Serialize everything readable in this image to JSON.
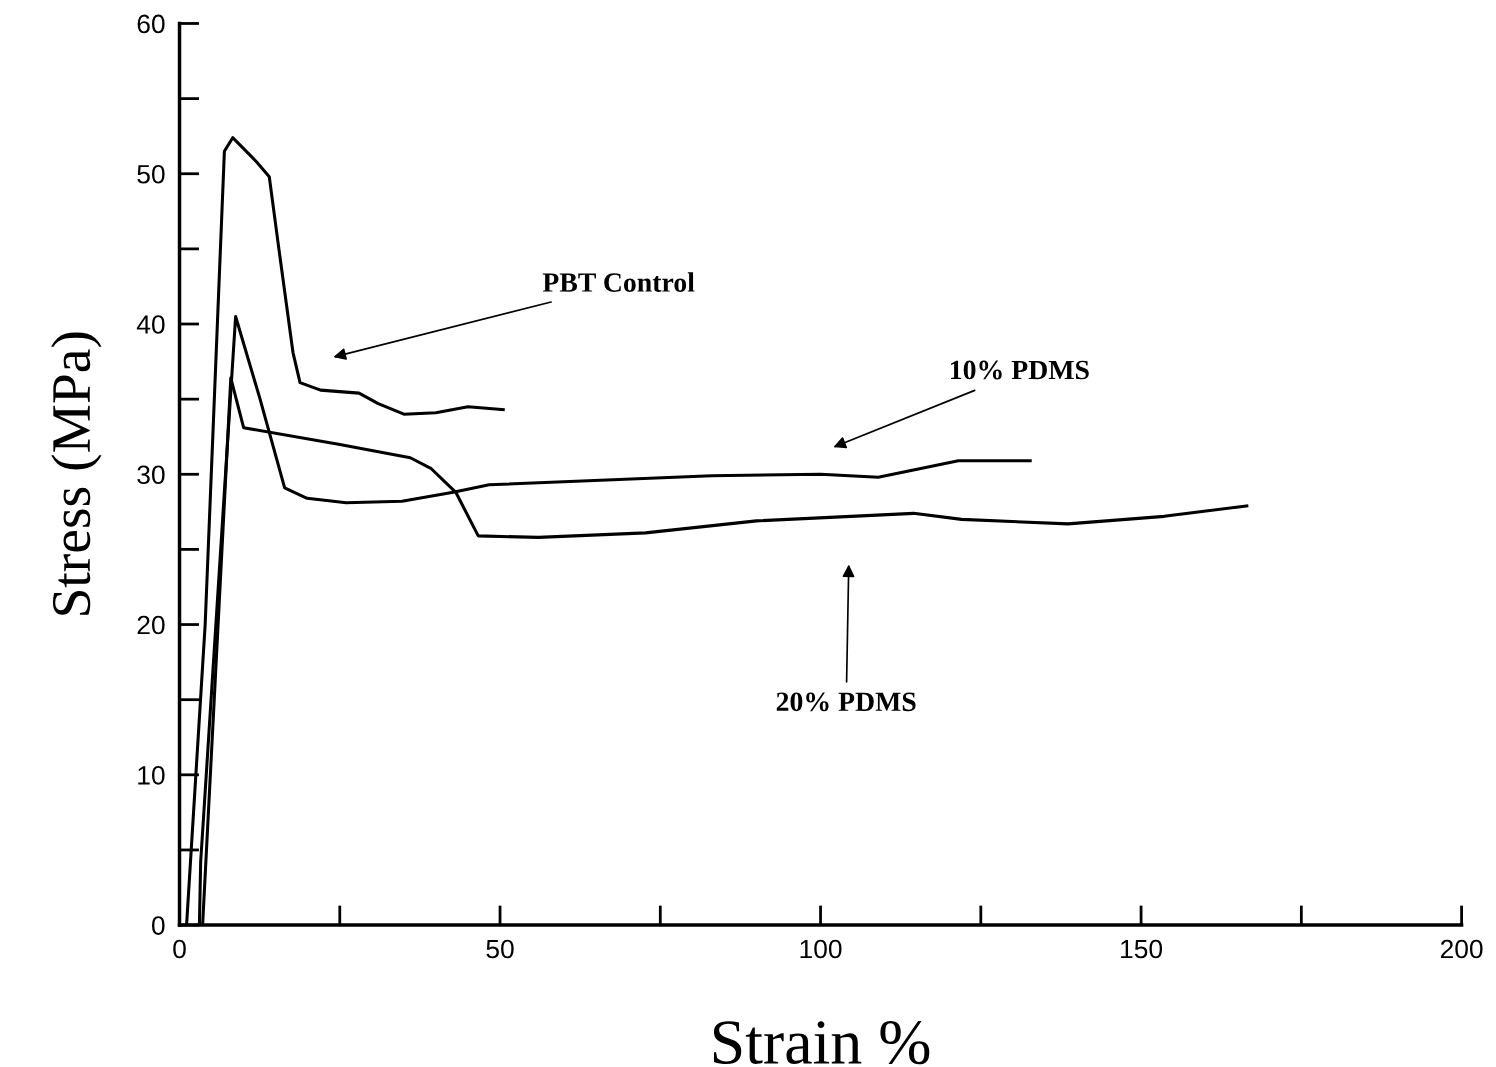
{
  "chart_data": {
    "type": "line",
    "xlabel": "Strain %",
    "ylabel": "Stress (MPa)",
    "xlim": [
      0,
      200
    ],
    "ylim": [
      0,
      60
    ],
    "xticks": [
      0,
      50,
      100,
      150,
      200
    ],
    "yticks": [
      0,
      10,
      20,
      30,
      40,
      50,
      60
    ],
    "grid": false,
    "legend": false,
    "marker": "none",
    "line_style": "solid",
    "series": [
      {
        "color": "#000000",
        "x": [
          1.1,
          4,
          7,
          8.3,
          12,
          14,
          15.5,
          17.7,
          18.8,
          22,
          28,
          31,
          35,
          40,
          45,
          50.5
        ],
        "values": [
          0,
          20,
          51.5,
          52.4,
          50.8,
          49.8,
          45,
          38.1,
          36.1,
          35.6,
          35.4,
          34.7,
          34.0,
          34.1,
          34.5,
          34.3
        ]
      },
      {
        "color": "#000000",
        "x": [
          3.1,
          3.3,
          8.75,
          12.5,
          16.4,
          19.9,
          26,
          34.7,
          42.7,
          48.3,
          83,
          100,
          109,
          121.5,
          132.7
        ],
        "values": [
          0,
          4.2,
          40.5,
          35.1,
          29.1,
          28.4,
          28.1,
          28.2,
          28.8,
          29.3,
          29.9,
          30,
          29.8,
          30.9,
          30.9
        ]
      },
      {
        "color": "#000000",
        "x": [
          3.6,
          8,
          10,
          24.8,
          36,
          39.2,
          43.1,
          46.6,
          56,
          72.7,
          90,
          114.5,
          122,
          138.6,
          153.6,
          166.5
        ],
        "values": [
          0,
          36.4,
          33.1,
          32.0,
          31.1,
          30.4,
          28.8,
          25.9,
          25.8,
          26.1,
          26.9,
          27.4,
          27.0,
          26.7,
          27.2,
          27.9
        ]
      }
    ],
    "annotations": [
      "PBT Control",
      "10% PDMS",
      "20% PDMS"
    ]
  }
}
